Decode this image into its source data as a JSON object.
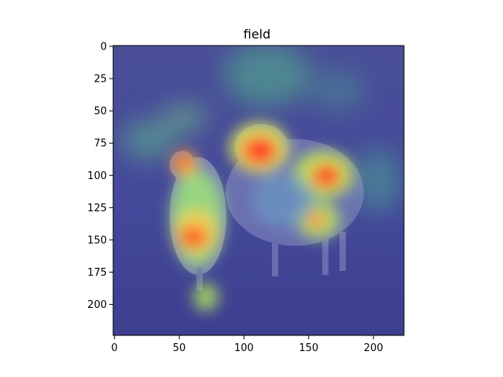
{
  "figure": {
    "title": "field"
  },
  "image": {
    "subject": "two sheep in a grassy field with a jet-colormap attention heatmap overlay",
    "extent_x": [
      0,
      224
    ],
    "extent_y": [
      224,
      0
    ],
    "colormap": "jet",
    "overlay_alpha": 0.5,
    "colors": {
      "background": "#ffffff",
      "axis": "#000000",
      "low": "#3b3f9c",
      "mid": "#66d08a",
      "high": "#ff3020"
    }
  },
  "axes": {
    "x_ticks": [
      0,
      50,
      100,
      150,
      200
    ],
    "y_ticks": [
      0,
      25,
      50,
      75,
      100,
      125,
      150,
      175,
      200
    ]
  }
}
